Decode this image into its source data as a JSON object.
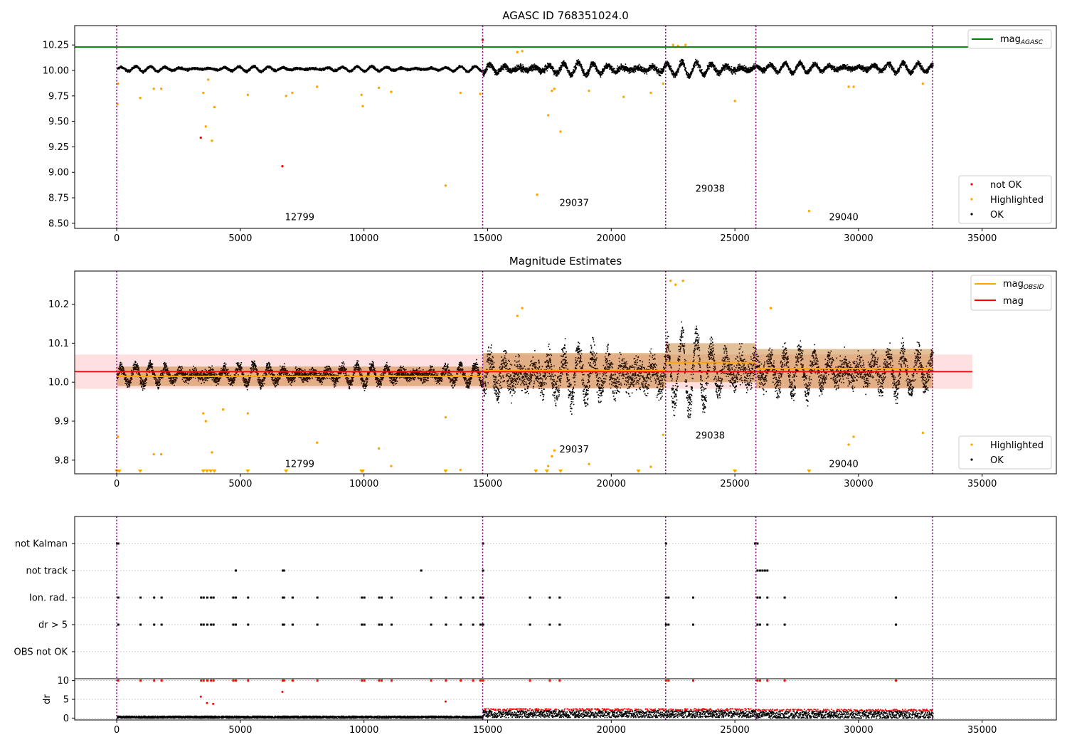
{
  "colors": {
    "ok": "#000000",
    "not_ok": "#ff0000",
    "highlighted": "#ffa500",
    "mag_agasc": "#008000",
    "mag_obsid": "#ffa500",
    "mag": "#ff0000",
    "divider": "#800080"
  },
  "chart_data": [
    {
      "type": "scatter",
      "title": "AGASC ID 768351024.0",
      "xlabel": "",
      "ylabel": "",
      "xlim": [
        -1700,
        38000
      ],
      "ylim": [
        8.45,
        10.44
      ],
      "x_ticks": [
        0,
        5000,
        10000,
        15000,
        20000,
        25000,
        30000,
        35000
      ],
      "y_ticks": [
        8.5,
        8.75,
        9.0,
        9.25,
        9.5,
        9.75,
        10.0,
        10.25
      ],
      "x_tick_labels": [
        "0",
        "5000",
        "10000",
        "15000",
        "20000",
        "25000",
        "30000",
        "35000"
      ],
      "y_tick_labels": [
        "8.50",
        "8.75",
        "9.00",
        "9.25",
        "9.50",
        "9.75",
        "10.00",
        "10.25"
      ],
      "reference_line": {
        "name": "mag_AGASC",
        "y": 10.23
      },
      "obs_boundaries": [
        0,
        14800,
        22200,
        25850,
        33000
      ],
      "obs_labels": [
        {
          "text": "12799",
          "x": 7400,
          "y": 8.53
        },
        {
          "text": "29037",
          "x": 18500,
          "y": 8.67
        },
        {
          "text": "29038",
          "x": 24000,
          "y": 8.81
        },
        {
          "text": "29040",
          "x": 29400,
          "y": 8.53
        }
      ],
      "ok_bands": [
        {
          "x0": 0,
          "x1": 14800,
          "base": 10.02,
          "amp": 0.025,
          "noise": 0.02
        },
        {
          "x0": 14800,
          "x1": 22200,
          "base": 10.02,
          "amp": 0.06,
          "noise": 0.05
        },
        {
          "x0": 22200,
          "x1": 25850,
          "base": 10.02,
          "amp": 0.07,
          "noise": 0.05
        },
        {
          "x0": 25850,
          "x1": 33000,
          "base": 10.03,
          "amp": 0.05,
          "noise": 0.04
        }
      ],
      "highlighted": [
        [
          30,
          9.67
        ],
        [
          50,
          9.87
        ],
        [
          950,
          9.73
        ],
        [
          1500,
          9.82
        ],
        [
          1800,
          9.82
        ],
        [
          3500,
          9.78
        ],
        [
          3600,
          9.45
        ],
        [
          3700,
          9.91
        ],
        [
          3850,
          9.31
        ],
        [
          3950,
          9.64
        ],
        [
          5300,
          9.76
        ],
        [
          6850,
          9.75
        ],
        [
          7100,
          9.78
        ],
        [
          8100,
          9.84
        ],
        [
          9900,
          9.76
        ],
        [
          9950,
          9.65
        ],
        [
          10600,
          9.83
        ],
        [
          11100,
          9.79
        ],
        [
          13300,
          8.87
        ],
        [
          13900,
          9.78
        ],
        [
          14700,
          9.77
        ],
        [
          16200,
          10.18
        ],
        [
          16400,
          10.19
        ],
        [
          17000,
          8.78
        ],
        [
          17450,
          9.56
        ],
        [
          17600,
          9.8
        ],
        [
          17700,
          9.82
        ],
        [
          17950,
          9.4
        ],
        [
          19100,
          9.8
        ],
        [
          20500,
          9.74
        ],
        [
          21600,
          9.78
        ],
        [
          22100,
          9.87
        ],
        [
          22500,
          10.25
        ],
        [
          22700,
          10.24
        ],
        [
          23000,
          10.25
        ],
        [
          25000,
          9.7
        ],
        [
          28000,
          8.62
        ],
        [
          29600,
          9.84
        ],
        [
          29800,
          9.84
        ],
        [
          32600,
          9.87
        ]
      ],
      "not_ok": [
        [
          3400,
          9.34
        ],
        [
          6700,
          9.06
        ],
        [
          14800,
          10.3
        ]
      ],
      "legend": [
        {
          "label": "not OK",
          "key": "not_ok"
        },
        {
          "label": "Highlighted",
          "key": "highlighted"
        },
        {
          "label": "OK",
          "key": "ok"
        }
      ]
    },
    {
      "type": "scatter",
      "title": "Magnitude Estimates",
      "xlabel": "",
      "ylabel": "",
      "xlim": [
        -1700,
        38000
      ],
      "ylim": [
        9.765,
        10.285
      ],
      "x_ticks": [
        0,
        5000,
        10000,
        15000,
        20000,
        25000,
        30000,
        35000
      ],
      "y_ticks": [
        9.8,
        9.9,
        10.0,
        10.1,
        10.2
      ],
      "x_tick_labels": [
        "0",
        "5000",
        "10000",
        "15000",
        "20000",
        "25000",
        "30000",
        "35000"
      ],
      "y_tick_labels": [
        "9.8",
        "9.9",
        "10.0",
        "10.1",
        "10.2"
      ],
      "mag": {
        "y": 10.027,
        "band": [
          9.983,
          10.071
        ],
        "x0": -1700,
        "x1": 34600
      },
      "mag_obsid": [
        {
          "x0": 0,
          "x1": 14800,
          "y": 10.015,
          "band": [
            9.99,
            10.04
          ]
        },
        {
          "x0": 14800,
          "x1": 22200,
          "y": 10.03,
          "band": [
            9.985,
            10.075
          ]
        },
        {
          "x0": 22200,
          "x1": 25850,
          "y": 10.05,
          "band": [
            10.0,
            10.1
          ]
        },
        {
          "x0": 25850,
          "x1": 33000,
          "y": 10.035,
          "band": [
            9.985,
            10.085
          ]
        }
      ],
      "obs_boundaries": [
        0,
        14800,
        22200,
        25850,
        33000
      ],
      "obs_labels": [
        {
          "text": "12799",
          "x": 7400,
          "y": 9.782
        },
        {
          "text": "29037",
          "x": 18500,
          "y": 9.82
        },
        {
          "text": "29038",
          "x": 24000,
          "y": 9.855
        },
        {
          "text": "29040",
          "x": 29400,
          "y": 9.782
        }
      ],
      "ok_bands": [
        {
          "x0": 0,
          "x1": 14800,
          "base": 10.02,
          "amp": 0.025,
          "noise": 0.025
        },
        {
          "x0": 14800,
          "x1": 22200,
          "base": 10.02,
          "amp": 0.06,
          "noise": 0.07
        },
        {
          "x0": 22200,
          "x1": 25850,
          "base": 10.03,
          "amp": 0.09,
          "noise": 0.07
        },
        {
          "x0": 25850,
          "x1": 33000,
          "base": 10.03,
          "amp": 0.05,
          "noise": 0.06
        }
      ],
      "highlighted": [
        [
          50,
          9.86
        ],
        [
          1500,
          9.815
        ],
        [
          1800,
          9.815
        ],
        [
          3500,
          9.92
        ],
        [
          3600,
          9.9
        ],
        [
          3850,
          9.82
        ],
        [
          4300,
          9.93
        ],
        [
          5300,
          9.92
        ],
        [
          8100,
          9.845
        ],
        [
          10600,
          9.83
        ],
        [
          11100,
          9.785
        ],
        [
          13300,
          9.91
        ],
        [
          13900,
          9.775
        ],
        [
          16200,
          10.17
        ],
        [
          16400,
          10.19
        ],
        [
          17450,
          9.785
        ],
        [
          17600,
          9.81
        ],
        [
          17700,
          9.825
        ],
        [
          19100,
          9.79
        ],
        [
          21600,
          9.783
        ],
        [
          22100,
          9.865
        ],
        [
          22400,
          10.26
        ],
        [
          22600,
          10.25
        ],
        [
          22900,
          10.26
        ],
        [
          26450,
          10.19
        ],
        [
          29600,
          9.84
        ],
        [
          29800,
          9.86
        ],
        [
          32600,
          9.87
        ]
      ],
      "highlighted_offscale": [
        0,
        100,
        950,
        3500,
        3650,
        3800,
        3950,
        5300,
        6850,
        9900,
        9950,
        13300,
        16950,
        17400,
        17950,
        21100,
        25000,
        28000
      ],
      "legend_lines": [
        {
          "label": "mag_OBSID",
          "key": "mag_obsid"
        },
        {
          "label": "mag",
          "key": "mag"
        }
      ],
      "legend_points": [
        {
          "label": "Highlighted",
          "key": "highlighted"
        },
        {
          "label": "OK",
          "key": "ok"
        }
      ]
    },
    {
      "type": "scatter",
      "title": "",
      "xlabel": "",
      "ylabel": "",
      "xlim": [
        -1700,
        38000
      ],
      "categories": [
        "not Kalman",
        "not track",
        "Ion. rad.",
        "dr > 5",
        "OBS not OK"
      ],
      "obs_boundaries": [
        0,
        14800,
        22200,
        25850,
        33000
      ],
      "flags": {
        "not Kalman": [
          0,
          50,
          14800,
          22200,
          25800,
          25900
        ],
        "not track": [
          4800,
          6700,
          6750,
          12300,
          14800,
          25900,
          26000,
          26100,
          26200,
          26300
        ],
        "Ion. rad.": [
          50,
          950,
          1500,
          1800,
          3400,
          3500,
          3650,
          3800,
          3900,
          4700,
          4800,
          5300,
          6700,
          6750,
          7100,
          8100,
          9900,
          10000,
          10600,
          10700,
          11100,
          12700,
          13300,
          13900,
          14400,
          14700,
          14800,
          16700,
          17500,
          17900,
          22200,
          22300,
          23300,
          25900,
          26000,
          26300,
          27000,
          31500
        ],
        "dr > 5": [
          50,
          950,
          1500,
          1800,
          3400,
          3500,
          3650,
          3800,
          3900,
          4700,
          4800,
          5300,
          6700,
          6750,
          7100,
          8100,
          9900,
          10000,
          10600,
          10700,
          11100,
          12700,
          13300,
          13900,
          14400,
          14700,
          14800,
          16700,
          17500,
          17900,
          22200,
          22300,
          23300,
          25900,
          26000,
          26300,
          27000,
          31500
        ],
        "OBS not OK": []
      }
    },
    {
      "type": "scatter",
      "title": "",
      "xlabel": "",
      "ylabel": "dr",
      "xlim": [
        -1700,
        38000
      ],
      "ylim": [
        -0.5,
        10.5
      ],
      "y_ticks": [
        0,
        5,
        10
      ],
      "y_tick_labels": [
        "0",
        "5",
        "10"
      ],
      "obs_boundaries": [
        0,
        14800,
        22200,
        25850,
        33000
      ],
      "dr_bands": [
        {
          "x0": 0,
          "x1": 14800,
          "base": 0.4,
          "spread": 0.6
        },
        {
          "x0": 14800,
          "x1": 22200,
          "base": 1.5,
          "spread": 2.4
        },
        {
          "x0": 22200,
          "x1": 25850,
          "base": 1.5,
          "spread": 2.4
        },
        {
          "x0": 25850,
          "x1": 33000,
          "base": 1.3,
          "spread": 2.4
        }
      ],
      "dr_outliers_red": [
        [
          3400,
          5.7
        ],
        [
          3650,
          4.0
        ],
        [
          6700,
          7.0
        ],
        [
          3900,
          3.8
        ],
        [
          13300,
          4.4
        ]
      ],
      "dr_at_ten": [
        50,
        950,
        1500,
        1800,
        3400,
        3500,
        3650,
        3800,
        3900,
        4700,
        4800,
        5300,
        6700,
        6750,
        7100,
        8100,
        9900,
        10000,
        10600,
        10700,
        11100,
        12700,
        13300,
        13900,
        14400,
        14700,
        14800,
        16700,
        17500,
        17900,
        22200,
        22300,
        23300,
        25900,
        26000,
        26300,
        27000,
        31500
      ]
    }
  ]
}
